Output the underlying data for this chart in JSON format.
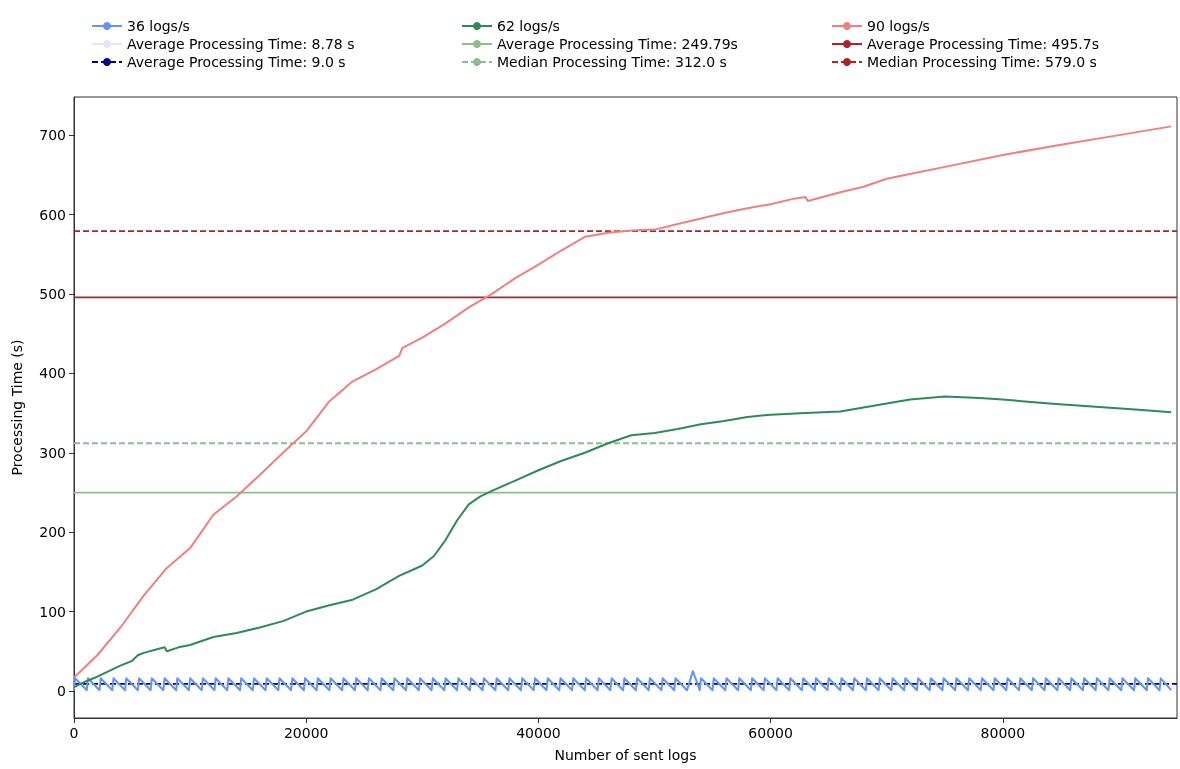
{
  "chart_data": {
    "type": "line",
    "xlabel": "Number of sent logs",
    "ylabel": "Processing Time (s)",
    "xlim": [
      0,
      95000
    ],
    "xticks": [
      0,
      20000,
      40000,
      60000,
      80000
    ],
    "ylim": [
      -34,
      748
    ],
    "yticks": [
      0,
      100,
      200,
      300,
      400,
      500,
      600,
      700
    ],
    "grid": false,
    "legend": "top",
    "marker": "none",
    "line_style": "solid",
    "series": [
      {
        "name": "36 logs/s",
        "color": "#6495ed",
        "x": [
          0,
          100,
          1100,
          1200,
          2200,
          2300,
          3300,
          3400,
          4400,
          4500,
          5500,
          5600,
          6600,
          6700,
          7700,
          7800,
          8800,
          8900,
          9900,
          10000,
          11000,
          11100,
          12100,
          12200,
          13200,
          13300,
          14300,
          14400,
          15400,
          15500,
          16500,
          16600,
          17600,
          17700,
          18700,
          18800,
          19800,
          19900,
          20900,
          21000,
          22000,
          22100,
          23100,
          23200,
          24200,
          24300,
          25300,
          25400,
          26400,
          26500,
          27500,
          27600,
          28600,
          28700,
          29700,
          29800,
          30800,
          30900,
          31900,
          32000,
          33000,
          33100,
          34100,
          34200,
          35200,
          35300,
          36300,
          36400,
          37400,
          37500,
          38500,
          38600,
          39600,
          39700,
          40700,
          40800,
          41800,
          41900,
          42900,
          43000,
          44000,
          44100,
          45100,
          45200,
          46200,
          46300,
          47300,
          47400,
          48400,
          48500,
          49500,
          49600,
          50600,
          50700,
          51700,
          51800,
          52800,
          53300,
          53900,
          54000,
          55000,
          55100,
          56100,
          56200,
          57200,
          57300,
          58300,
          58400,
          59400,
          59500,
          60500,
          60600,
          61600,
          61700,
          62700,
          62800,
          63800,
          63900,
          64900,
          65000,
          66000,
          66100,
          67100,
          67200,
          68200,
          68300,
          69300,
          69400,
          70400,
          70500,
          71500,
          71600,
          72600,
          72700,
          73700,
          73800,
          74800,
          74900,
          75900,
          76000,
          77000,
          77100,
          78100,
          78200,
          79200,
          79300,
          80300,
          80400,
          81400,
          81500,
          82500,
          82600,
          83600,
          83700,
          84700,
          84800,
          85800,
          85900,
          86900,
          87000,
          88000,
          88100,
          89100,
          89200,
          90200,
          90300,
          91300,
          91400,
          92400,
          92500,
          93500,
          93600,
          94500
        ],
        "values": [
          1,
          16,
          1,
          16,
          1,
          16,
          1,
          16,
          1,
          16,
          1,
          16,
          1,
          16,
          1,
          16,
          1,
          16,
          1,
          16,
          1,
          16,
          1,
          16,
          1,
          16,
          1,
          16,
          1,
          16,
          1,
          16,
          1,
          16,
          1,
          16,
          1,
          16,
          1,
          16,
          1,
          16,
          1,
          16,
          1,
          16,
          1,
          16,
          1,
          16,
          1,
          16,
          1,
          16,
          1,
          16,
          1,
          16,
          1,
          16,
          1,
          16,
          1,
          16,
          1,
          16,
          1,
          16,
          1,
          16,
          1,
          16,
          1,
          16,
          1,
          16,
          1,
          16,
          1,
          16,
          1,
          16,
          1,
          16,
          1,
          16,
          1,
          16,
          1,
          16,
          1,
          16,
          1,
          16,
          1,
          16,
          1,
          25,
          1,
          16,
          1,
          16,
          1,
          16,
          1,
          16,
          1,
          16,
          1,
          16,
          1,
          16,
          1,
          16,
          1,
          16,
          1,
          16,
          1,
          16,
          1,
          16,
          1,
          16,
          1,
          16,
          1,
          16,
          1,
          16,
          1,
          16,
          1,
          16,
          1,
          16,
          1,
          16,
          1,
          16,
          1,
          16,
          1,
          16,
          1,
          16,
          1,
          16,
          1,
          16,
          1,
          16,
          1,
          16,
          1,
          16,
          1,
          16,
          1,
          16,
          1,
          16,
          1,
          16,
          1,
          16,
          1,
          16,
          1,
          16,
          1,
          16,
          1
        ]
      },
      {
        "name": "62 logs/s",
        "color": "#2e8b57",
        "x": [
          0,
          1000,
          2000,
          3000,
          4000,
          5000,
          5500,
          6000,
          7000,
          7800,
          8000,
          9000,
          10000,
          12000,
          14000,
          16000,
          18000,
          20000,
          22000,
          24000,
          26000,
          28000,
          30000,
          31000,
          32000,
          33000,
          34000,
          35000,
          36000,
          38000,
          40000,
          42000,
          44000,
          46000,
          48000,
          50000,
          52000,
          54000,
          56000,
          58000,
          60000,
          63000,
          66000,
          68000,
          70000,
          72000,
          75000,
          78000,
          80000,
          84000,
          88000,
          92000,
          94500
        ],
        "values": [
          5,
          12,
          18,
          25,
          32,
          38,
          45,
          48,
          52,
          55,
          50,
          55,
          58,
          68,
          73,
          80,
          88,
          100,
          108,
          115,
          128,
          145,
          158,
          170,
          190,
          215,
          235,
          245,
          252,
          265,
          278,
          290,
          300,
          312,
          322,
          325,
          330,
          336,
          340,
          345,
          348,
          350,
          352,
          357,
          362,
          367,
          371,
          369,
          367,
          362,
          358,
          354,
          351
        ]
      },
      {
        "name": "90 logs/s",
        "color": "#f08080",
        "x": [
          0,
          2000,
          4000,
          6000,
          8000,
          10000,
          12000,
          14000,
          16000,
          18000,
          20000,
          22000,
          24000,
          26000,
          28000,
          28300,
          30000,
          32000,
          34000,
          36000,
          38000,
          40000,
          42000,
          44000,
          46000,
          48000,
          50000,
          52000,
          54000,
          56000,
          58000,
          60000,
          62000,
          63000,
          63200,
          66000,
          68000,
          70000,
          72000,
          75000,
          80000,
          85000,
          90000,
          94500
        ],
        "values": [
          17,
          45,
          80,
          120,
          155,
          180,
          222,
          245,
          272,
          300,
          327,
          365,
          390,
          405,
          422,
          432,
          445,
          463,
          483,
          500,
          520,
          537,
          555,
          572,
          577,
          580,
          581,
          588,
          595,
          602,
          608,
          613,
          620,
          622,
          617,
          628,
          635,
          645,
          651,
          660,
          675,
          688,
          700,
          711
        ]
      }
    ],
    "ref_lines": [
      {
        "axis": "y",
        "value": 8.78,
        "label": "Average Processing Time: 8.78 s",
        "color": "#e6e6fa",
        "line_style": "solid"
      },
      {
        "axis": "y",
        "value": 9.0,
        "label": "Average Processing Time: 9.0 s",
        "color": "#00008b",
        "line_style": "dashed"
      },
      {
        "axis": "y",
        "value": 249.79,
        "label": "Average Processing Time: 249.79s",
        "color": "#8fbc8f",
        "line_style": "solid"
      },
      {
        "axis": "y",
        "value": 312.0,
        "label": "Median Processing Time: 312.0 s",
        "color": "#8fbc8f",
        "line_style": "dashed"
      },
      {
        "axis": "y",
        "value": 495.7,
        "label": "Average Processing Time: 495.7s",
        "color": "#b22222",
        "line_style": "solid"
      },
      {
        "axis": "y",
        "value": 579.0,
        "label": "Median Processing Time: 579.0 s",
        "color": "#b22222",
        "line_style": "dashed"
      }
    ]
  }
}
